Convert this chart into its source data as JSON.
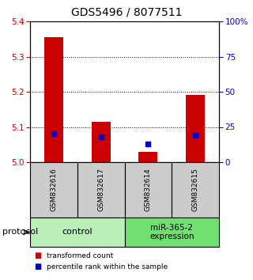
{
  "title": "GDS5496 / 8077511",
  "samples": [
    "GSM832616",
    "GSM832617",
    "GSM832614",
    "GSM832615"
  ],
  "red_values": [
    5.355,
    5.115,
    5.03,
    5.19
  ],
  "blue_values_pct": [
    20,
    18,
    13,
    19
  ],
  "ylim_left": [
    5.0,
    5.4
  ],
  "yticks_left": [
    5.0,
    5.1,
    5.2,
    5.3,
    5.4
  ],
  "yticks_right": [
    0,
    25,
    50,
    75,
    100
  ],
  "groups": [
    {
      "label": "control",
      "color": "#b8f0b8"
    },
    {
      "label": "miR-365-2\nexpression",
      "color": "#70e070"
    }
  ],
  "bar_width": 0.4,
  "bar_color_red": "#cc0000",
  "bar_color_blue": "#0000cc",
  "sample_box_color": "#cccccc",
  "legend_red": "transformed count",
  "legend_blue": "percentile rank within the sample",
  "protocol_label": "protocol",
  "left_axis_color": "#cc0000",
  "right_axis_color": "#0000cc"
}
